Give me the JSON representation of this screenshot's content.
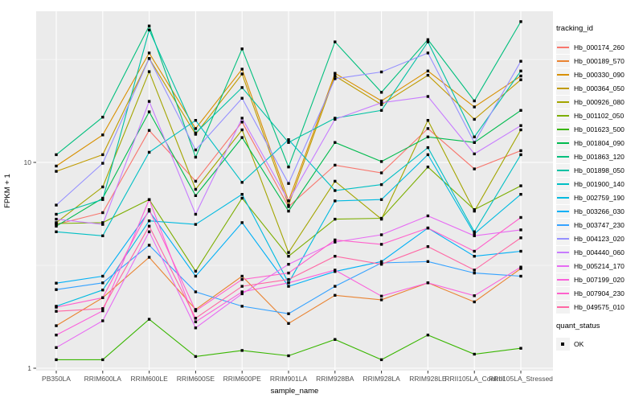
{
  "chart_data": {
    "type": "line",
    "title": "",
    "xlabel": "sample_name",
    "ylabel": "FPKM + 1",
    "y_scale": "log10",
    "ylim": [
      0.97,
      54
    ],
    "y_major_ticks": [
      1,
      10
    ],
    "y_minor_ticks": [
      3.162,
      31.62
    ],
    "grid": "major-and-minor-white-on-grey",
    "legend_position": "right",
    "marker": "black-square",
    "categories": [
      "PB350LA",
      "RRIM600LA",
      "RRIM600LE",
      "RRIM600SE",
      "RRIM600PE",
      "RRIM901LA",
      "RRIM928BA",
      "RRIM928LA",
      "RRIM928LE",
      "RRII105LA_Control",
      "RRII105LA_Stressed"
    ],
    "series": [
      {
        "name": "Hb_000174_260",
        "color": "#F8766D",
        "values": [
          5.0,
          5.7,
          14.3,
          8.1,
          15.7,
          6.1,
          9.7,
          8.9,
          14.6,
          9.3,
          11.4
        ]
      },
      {
        "name": "Hb_000189_570",
        "color": "#EA8331",
        "values": [
          1.61,
          2.2,
          3.46,
          1.93,
          2.8,
          1.65,
          2.26,
          2.15,
          2.6,
          2.1,
          3.05
        ]
      },
      {
        "name": "Hb_000330_090",
        "color": "#D89000",
        "values": [
          9.6,
          13.6,
          34.0,
          14.6,
          28.4,
          6.5,
          27.1,
          19.9,
          27.8,
          18.6,
          26.3
        ]
      },
      {
        "name": "Hb_000364_050",
        "color": "#C09B00",
        "values": [
          9.05,
          10.9,
          32.0,
          13.7,
          26.9,
          6.2,
          26.3,
          19.1,
          26.5,
          16.2,
          25.2
        ]
      },
      {
        "name": "Hb_000926_080",
        "color": "#A3A500",
        "values": [
          5.1,
          7.6,
          27.6,
          7.4,
          14.4,
          3.65,
          8.1,
          5.3,
          16.0,
          5.8,
          14.4
        ]
      },
      {
        "name": "Hb_001102_050",
        "color": "#7CAE00",
        "values": [
          5.05,
          5.1,
          6.6,
          2.96,
          6.7,
          3.5,
          5.3,
          5.35,
          9.5,
          5.9,
          7.7
        ]
      },
      {
        "name": "Hb_001623_500",
        "color": "#39B600",
        "values": [
          1.1,
          1.1,
          1.73,
          1.14,
          1.22,
          1.15,
          1.38,
          1.1,
          1.45,
          1.17,
          1.25
        ]
      },
      {
        "name": "Hb_001804_090",
        "color": "#00BB4E",
        "values": [
          4.9,
          6.7,
          17.6,
          6.9,
          13.2,
          5.8,
          12.5,
          10.1,
          13.3,
          12.5,
          17.9
        ]
      },
      {
        "name": "Hb_001863_120",
        "color": "#00BF7D",
        "values": [
          10.9,
          16.6,
          46.0,
          10.6,
          35.6,
          9.5,
          38.5,
          21.9,
          39.5,
          19.9,
          48.3
        ]
      },
      {
        "name": "Hb_001898_050",
        "color": "#00C1A3",
        "values": [
          5.6,
          6.6,
          44.0,
          13.9,
          23.1,
          12.5,
          16.4,
          17.9,
          38.5,
          13.3,
          27.8
        ]
      },
      {
        "name": "Hb_001900_140",
        "color": "#00BFC4",
        "values": [
          4.6,
          4.4,
          11.2,
          16.0,
          8.0,
          12.9,
          7.3,
          7.8,
          11.8,
          4.6,
          10.9
        ]
      },
      {
        "name": "Hb_002759_190",
        "color": "#00BAE0",
        "values": [
          2.0,
          2.4,
          5.2,
          5.0,
          7.0,
          2.6,
          6.5,
          6.6,
          10.9,
          4.5,
          7.0
        ]
      },
      {
        "name": "Hb_003266_030",
        "color": "#00B0F6",
        "values": [
          2.59,
          2.8,
          5.8,
          2.8,
          5.1,
          2.5,
          2.95,
          3.3,
          4.8,
          3.5,
          3.7
        ]
      },
      {
        "name": "Hb_003747_230",
        "color": "#35A2FF",
        "values": [
          2.41,
          2.6,
          3.96,
          2.35,
          2.0,
          1.84,
          2.5,
          3.25,
          3.3,
          2.9,
          2.8
        ]
      },
      {
        "name": "Hb_004123_020",
        "color": "#9590FF",
        "values": [
          6.2,
          9.9,
          32.0,
          11.5,
          20.5,
          7.9,
          25.5,
          27.5,
          34.0,
          12.5,
          31.0
        ]
      },
      {
        "name": "Hb_004440_060",
        "color": "#C77CFF",
        "values": [
          5.3,
          5.0,
          19.8,
          5.6,
          16.4,
          6.5,
          16.2,
          19.5,
          20.9,
          11.0,
          15.1
        ]
      },
      {
        "name": "Hb_005214_170",
        "color": "#E76BF3",
        "values": [
          1.26,
          1.7,
          4.6,
          1.57,
          2.3,
          3.2,
          4.1,
          4.45,
          5.5,
          4.4,
          4.7
        ]
      },
      {
        "name": "Hb_007199_020",
        "color": "#FA62DB",
        "values": [
          1.45,
          1.9,
          6.6,
          1.68,
          2.35,
          2.6,
          3.0,
          2.24,
          2.6,
          2.25,
          3.1
        ]
      },
      {
        "name": "Hb_007904_230",
        "color": "#FF61CC",
        "values": [
          1.98,
          2.2,
          5.9,
          1.9,
          2.7,
          2.9,
          4.2,
          4.0,
          4.8,
          3.7,
          5.4
        ]
      },
      {
        "name": "Hb_049575_010",
        "color": "#FF67A4",
        "values": [
          1.89,
          1.95,
          4.9,
          1.75,
          2.5,
          2.7,
          3.5,
          3.2,
          3.9,
          3.0,
          4.3
        ]
      }
    ]
  },
  "legend": {
    "title": "tracking_id"
  },
  "quant_legend": {
    "title": "quant_status",
    "ok_label": "OK"
  },
  "axes": {
    "x_title": "sample_name",
    "y_title": "FPKM + 1",
    "y_tick_labels": [
      "1",
      "10"
    ]
  },
  "colors": {
    "panel_bg": "#EBEBEB",
    "grid": "#FFFFFF",
    "axis_text": "#4D4D4D",
    "tick": "#333333",
    "marker": "#000000"
  }
}
